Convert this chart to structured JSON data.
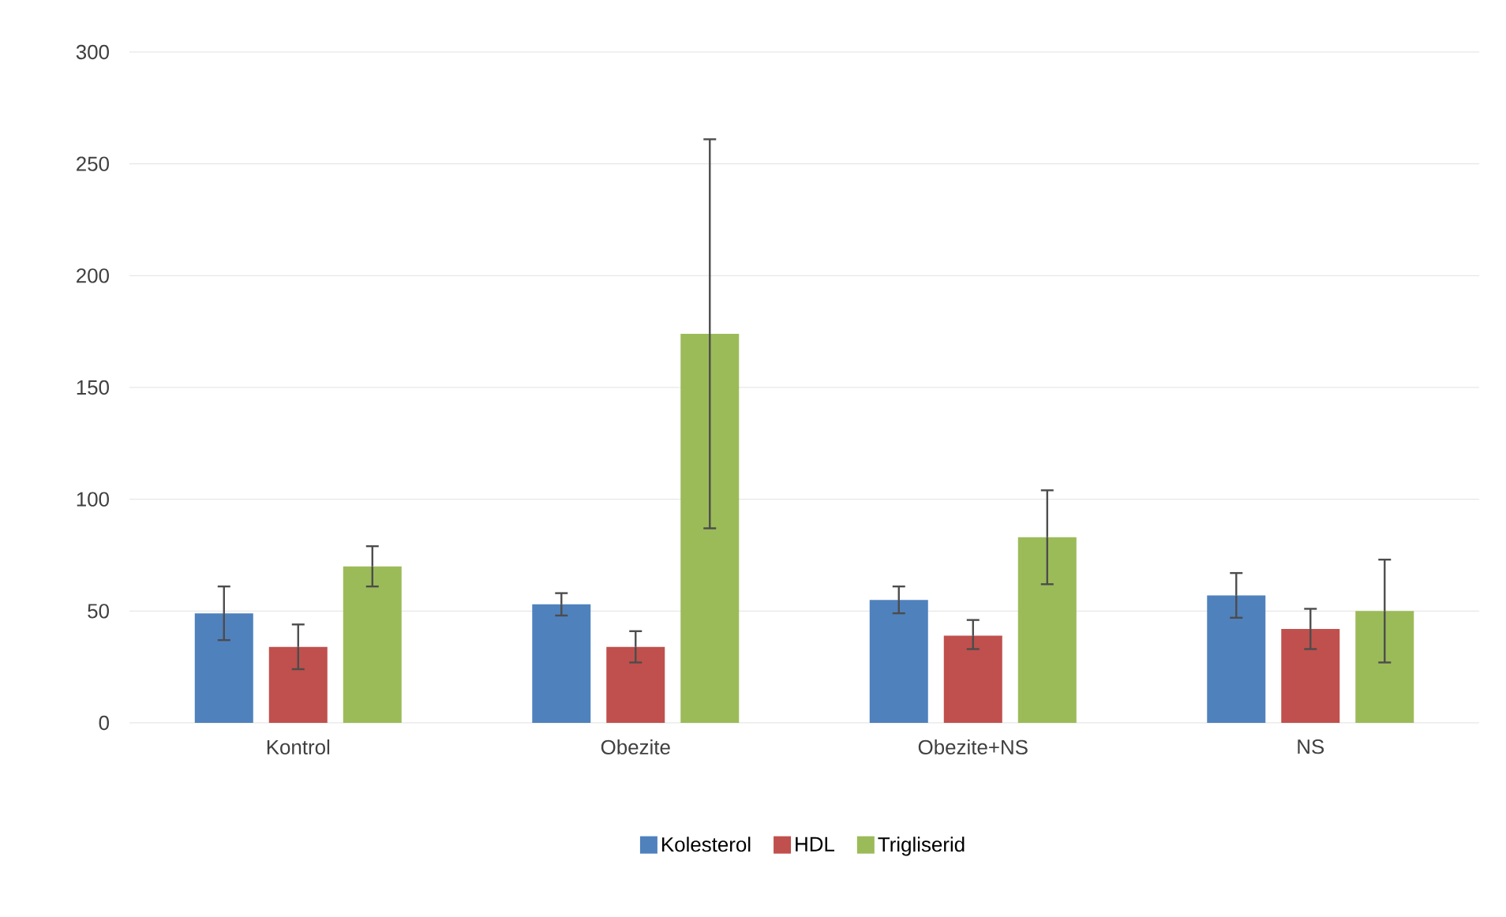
{
  "chart_data": {
    "type": "bar",
    "categories": [
      "Kontrol",
      "Obezite",
      "Obezite+NS",
      "NS"
    ],
    "series": [
      {
        "name": "Kolesterol",
        "color": "#4f81bd",
        "values": [
          49,
          53,
          55,
          57
        ],
        "errors": [
          [
            37,
            61
          ],
          [
            48,
            58
          ],
          [
            49,
            61
          ],
          [
            47,
            67
          ]
        ]
      },
      {
        "name": "HDL",
        "color": "#c0504d",
        "values": [
          34,
          34,
          39,
          42
        ],
        "errors": [
          [
            24,
            44
          ],
          [
            27,
            41
          ],
          [
            33,
            46
          ],
          [
            33,
            51
          ]
        ]
      },
      {
        "name": "Trigliserid",
        "color": "#9bbb59",
        "values": [
          70,
          174,
          83,
          50
        ],
        "errors": [
          [
            61,
            79
          ],
          [
            87,
            261
          ],
          [
            62,
            104
          ],
          [
            27,
            73
          ]
        ]
      }
    ],
    "ylim": [
      0,
      300
    ],
    "yticks": [
      0,
      50,
      100,
      150,
      200,
      250,
      300
    ],
    "grid": "y",
    "legend": "bottom"
  }
}
